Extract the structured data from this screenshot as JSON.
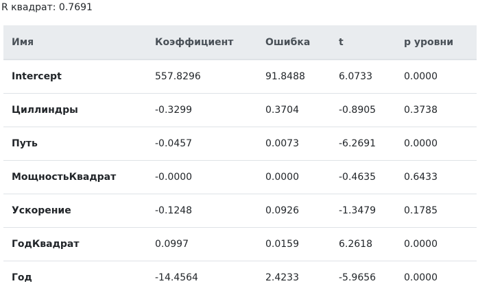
{
  "r_squared_label": "R квадрат: 0.7691",
  "table": {
    "headers": [
      "Имя",
      "Коэффициент",
      "Ошибка",
      "t",
      "p уровни"
    ],
    "rows": [
      [
        "Intercept",
        "557.8296",
        "91.8488",
        "6.0733",
        "0.0000"
      ],
      [
        "Циллиндры",
        "-0.3299",
        "0.3704",
        "-0.8905",
        "0.3738"
      ],
      [
        "Путь",
        "-0.0457",
        "0.0073",
        "-6.2691",
        "0.0000"
      ],
      [
        "МощностьКвадрат",
        "-0.0000",
        "0.0000",
        "-0.4635",
        "0.6433"
      ],
      [
        "Ускорение",
        "-0.1248",
        "0.0926",
        "-1.3479",
        "0.1785"
      ],
      [
        "ГодКвадрат",
        "0.0997",
        "0.0159",
        "6.2618",
        "0.0000"
      ],
      [
        "Год",
        "-14.4564",
        "2.4233",
        "-5.9656",
        "0.0000"
      ]
    ]
  }
}
